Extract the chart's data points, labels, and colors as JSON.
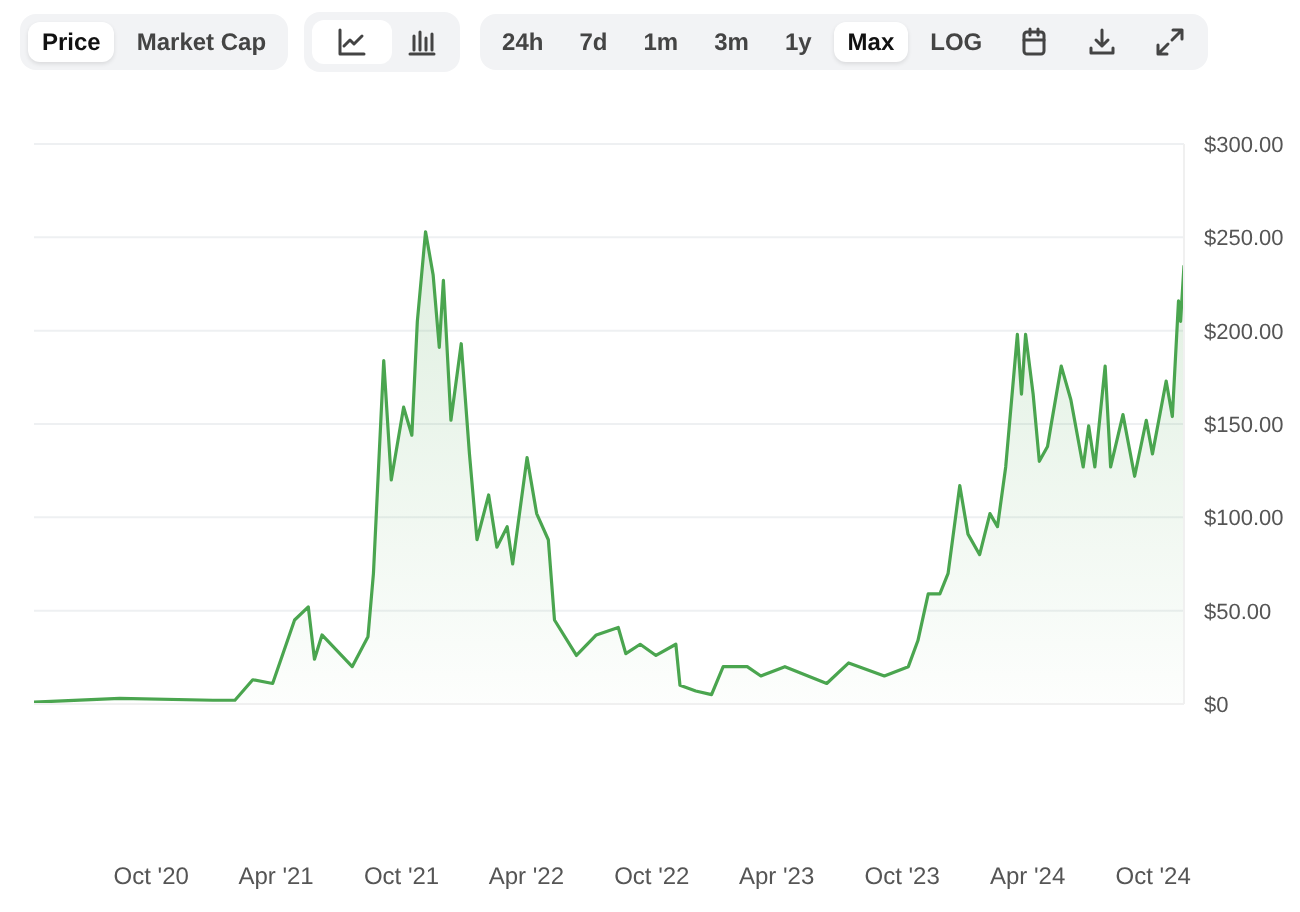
{
  "chart_data": {
    "type": "area",
    "x": [
      "2020-04-13",
      "2020-08-16",
      "2020-12-30",
      "2021-01-31",
      "2021-02-26",
      "2021-03-27",
      "2021-04-28",
      "2021-05-18",
      "2021-05-27",
      "2021-06-07",
      "2021-07-21",
      "2021-08-13",
      "2021-08-21",
      "2021-09-05",
      "2021-09-16",
      "2021-10-04",
      "2021-10-16",
      "2021-10-24",
      "2021-11-05",
      "2021-11-16",
      "2021-11-25",
      "2021-12-01",
      "2021-12-12",
      "2021-12-27",
      "2022-01-08",
      "2022-01-19",
      "2022-02-05",
      "2022-02-17",
      "2022-03-04",
      "2022-03-12",
      "2022-04-02",
      "2022-04-16",
      "2022-05-03",
      "2022-05-12",
      "2022-06-13",
      "2022-07-12",
      "2022-08-13",
      "2022-08-24",
      "2022-09-14",
      "2022-10-07",
      "2022-11-05",
      "2022-11-11",
      "2022-12-04",
      "2022-12-27",
      "2023-01-13",
      "2023-02-17",
      "2023-03-09",
      "2023-04-13",
      "2023-06-13",
      "2023-07-15",
      "2023-09-05",
      "2023-10-10",
      "2023-10-24",
      "2023-11-08",
      "2023-11-25",
      "2023-12-07",
      "2023-12-24",
      "2024-01-05",
      "2024-01-22",
      "2024-02-06",
      "2024-02-17",
      "2024-02-29",
      "2024-03-17",
      "2024-03-23",
      "2024-03-29",
      "2024-04-09",
      "2024-04-18",
      "2024-04-30",
      "2024-05-05",
      "2024-05-20",
      "2024-06-03",
      "2024-06-21",
      "2024-06-29",
      "2024-07-08",
      "2024-07-23",
      "2024-07-31",
      "2024-08-18",
      "2024-09-04",
      "2024-09-21",
      "2024-09-30",
      "2024-10-20",
      "2024-10-29",
      "2024-11-07",
      "2024-11-10",
      "2024-11-15"
    ],
    "series": [
      {
        "color": "#4aa54f",
        "values": [
          1,
          3,
          2,
          2,
          13,
          11,
          45,
          52,
          24,
          37,
          20,
          36,
          70,
          184,
          120,
          159,
          144,
          205,
          253,
          230,
          191,
          227,
          152,
          193,
          134,
          88,
          112,
          84,
          95,
          75,
          132,
          102,
          88,
          45,
          26,
          37,
          41,
          27,
          32,
          26,
          32,
          10,
          7,
          5,
          20,
          20,
          15,
          20,
          11,
          22,
          15,
          20,
          34,
          59,
          59,
          70,
          117,
          91,
          80,
          102,
          95,
          127,
          198,
          166,
          198,
          166,
          130,
          138,
          149,
          181,
          163,
          127,
          149,
          127,
          181,
          127,
          155,
          122,
          152,
          134,
          173,
          154,
          216,
          205,
          235
        ]
      }
    ],
    "xlim": [
      "2020-04-13",
      "2024-11-15"
    ],
    "xticks": [
      {
        "value": "2020-10-01",
        "label": "Oct '20"
      },
      {
        "value": "2021-04-01",
        "label": "Apr '21"
      },
      {
        "value": "2021-10-01",
        "label": "Oct '21"
      },
      {
        "value": "2022-04-01",
        "label": "Apr '22"
      },
      {
        "value": "2022-10-01",
        "label": "Oct '22"
      },
      {
        "value": "2023-04-01",
        "label": "Apr '23"
      },
      {
        "value": "2023-10-01",
        "label": "Oct '23"
      },
      {
        "value": "2024-04-01",
        "label": "Apr '24"
      },
      {
        "value": "2024-10-01",
        "label": "Oct '24"
      }
    ],
    "ylim": [
      0,
      300
    ],
    "yticks": [
      {
        "value": 0,
        "label": "$0"
      },
      {
        "value": 50,
        "label": "$50.00"
      },
      {
        "value": 100,
        "label": "$100.00"
      },
      {
        "value": 150,
        "label": "$150.00"
      },
      {
        "value": 200,
        "label": "$200.00"
      },
      {
        "value": 250,
        "label": "$250.00"
      },
      {
        "value": 300,
        "label": "$300.00"
      }
    ],
    "grid": "y",
    "marker": "none",
    "line_style": "solid",
    "legend": false,
    "annotations": [
      "Price",
      "Market Cap",
      "24h",
      "7d",
      "1m",
      "3m",
      "1y",
      "Max",
      "LOG"
    ]
  }
}
